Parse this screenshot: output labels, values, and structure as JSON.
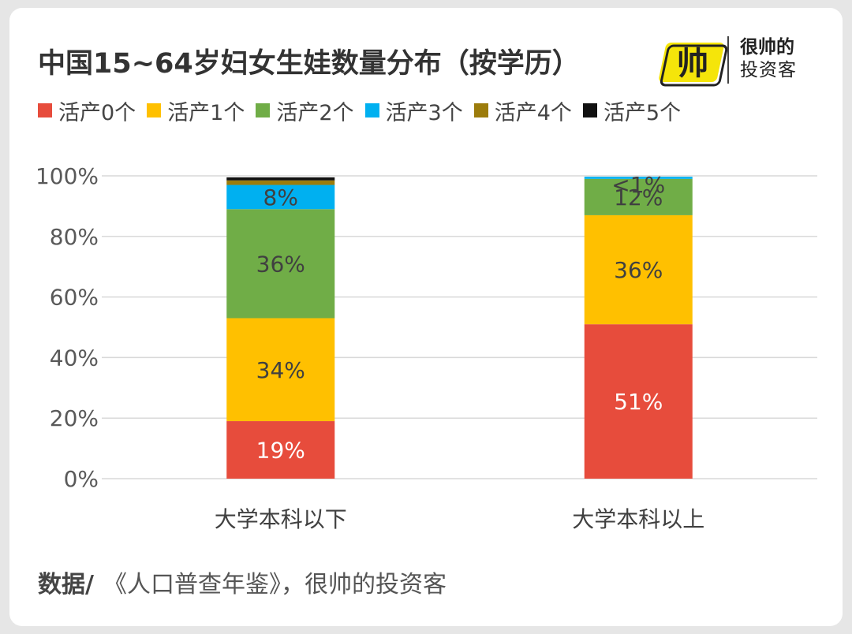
{
  "title": "中国15~64岁妇女生娃数量分布（按学历）",
  "brand": {
    "logo_text": "帅",
    "line1": "很帅的",
    "line2": "投资客"
  },
  "source": {
    "label": "数据/",
    "text": "《人口普查年鉴》，很帅的投资客"
  },
  "chart_data": {
    "type": "bar",
    "stacked": true,
    "categories": [
      "大学本科以下",
      "大学本科以上"
    ],
    "series": [
      {
        "name": "活产0个",
        "color": "#e74c3c",
        "values": [
          19,
          51
        ],
        "labels": [
          "19%",
          "51%"
        ],
        "label_color": "#ffffff"
      },
      {
        "name": "活产1个",
        "color": "#ffc000",
        "values": [
          34,
          36
        ],
        "labels": [
          "34%",
          "36%"
        ],
        "label_color": "#404040"
      },
      {
        "name": "活产2个",
        "color": "#70ad47",
        "values": [
          36,
          12
        ],
        "labels": [
          "36%",
          "12%"
        ],
        "label_color": "#404040"
      },
      {
        "name": "活产3个",
        "color": "#00b0f0",
        "values": [
          8,
          0.7
        ],
        "labels": [
          "8%",
          "<1%"
        ],
        "label_color": "#404040"
      },
      {
        "name": "活产4个",
        "color": "#9c7c0c",
        "values": [
          1.5,
          0
        ],
        "labels": [
          "",
          ""
        ],
        "label_color": "#404040"
      },
      {
        "name": "活产5个",
        "color": "#111111",
        "values": [
          1,
          0
        ],
        "labels": [
          "",
          ""
        ],
        "label_color": "#404040"
      }
    ],
    "ylim": [
      0,
      100
    ],
    "yticks": [
      0,
      20,
      40,
      60,
      80,
      100
    ],
    "ytick_labels": [
      "0%",
      "20%",
      "40%",
      "60%",
      "80%",
      "100%"
    ],
    "grid": true,
    "legend": "top"
  }
}
